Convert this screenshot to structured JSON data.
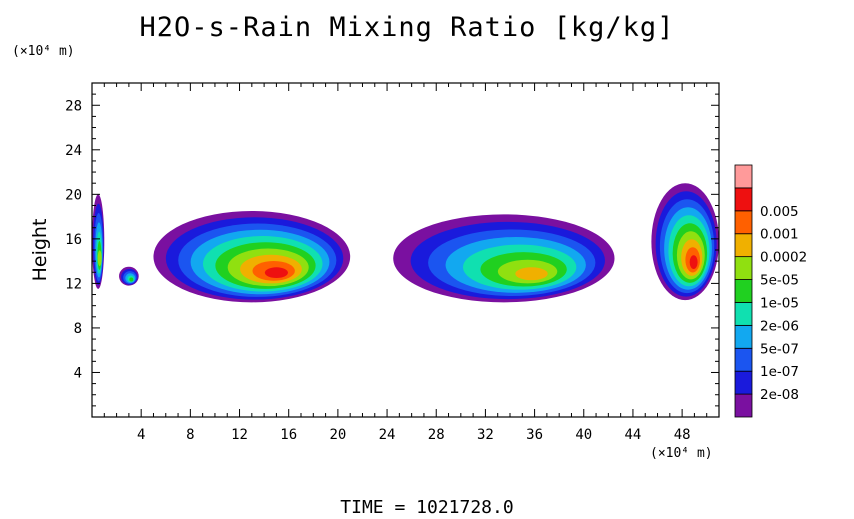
{
  "title": "H2O-s-Rain Mixing Ratio [kg/kg]",
  "y_unit": "(×10⁴ m)",
  "x_unit": "(×10⁴ m)",
  "ylabel": "Height",
  "time_label": "TIME  =  1021728.0",
  "chart_data": {
    "type": "heatmap",
    "title": "H2O-s-Rain Mixing Ratio [kg/kg]",
    "ylabel": "Height",
    "xlabel": "",
    "x_unit": "(×10⁴ m)",
    "y_unit": "(×10⁴ m)",
    "xlim": [
      0,
      51
    ],
    "ylim": [
      0,
      30
    ],
    "x_ticks": [
      4,
      8,
      12,
      16,
      20,
      24,
      28,
      32,
      36,
      40,
      44,
      48
    ],
    "y_ticks": [
      4,
      8,
      12,
      16,
      20,
      24,
      28
    ],
    "colorbar": {
      "labels": [
        "2e-08",
        "1e-07",
        "5e-07",
        "2e-06",
        "1e-05",
        "5e-05",
        "0.0002",
        "0.001",
        "0.005"
      ],
      "colors": [
        "#7a10a0",
        "#1a1adc",
        "#1b55f0",
        "#12a8f0",
        "#10e0b0",
        "#20d020",
        "#90e010",
        "#f0b000",
        "#ff6000",
        "#ee1010",
        "#ff9a9a"
      ]
    },
    "regions": [
      {
        "name": "left edge cloud",
        "x": [
          0,
          1
        ],
        "y": [
          11.5,
          20
        ],
        "max_level": 6
      },
      {
        "name": "small cell near x=3",
        "x": [
          2.2,
          3.8
        ],
        "y": [
          11.8,
          13.5
        ],
        "max_level": 5
      },
      {
        "name": "western cloud band",
        "x": [
          5,
          21
        ],
        "y": [
          10.3,
          18.5
        ],
        "max_level": 9
      },
      {
        "name": "central cloud band",
        "x": [
          24.5,
          42.5
        ],
        "y": [
          10.3,
          18.2
        ],
        "max_level": 7
      },
      {
        "name": "eastern cloud",
        "x": [
          45.5,
          51
        ],
        "y": [
          10.5,
          21
        ],
        "max_level": 9
      }
    ],
    "time": 1021728.0
  }
}
